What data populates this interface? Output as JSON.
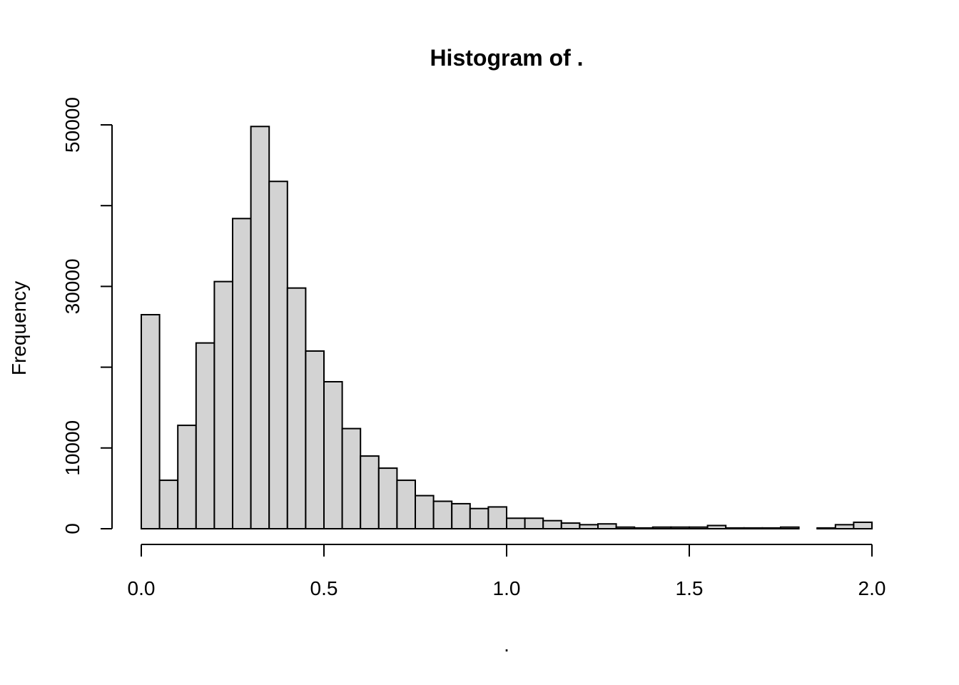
{
  "chart_data": {
    "type": "bar",
    "title": "Histogram of .",
    "xlabel": ".",
    "ylabel": "Frequency",
    "bin_width": 0.05,
    "bin_starts": [
      0.0,
      0.05,
      0.1,
      0.15,
      0.2,
      0.25,
      0.3,
      0.35,
      0.4,
      0.45,
      0.5,
      0.55,
      0.6,
      0.65,
      0.7,
      0.75,
      0.8,
      0.85,
      0.9,
      0.95,
      1.0,
      1.05,
      1.1,
      1.15,
      1.2,
      1.25,
      1.3,
      1.35,
      1.4,
      1.45,
      1.5,
      1.55,
      1.6,
      1.65,
      1.7,
      1.75,
      1.8,
      1.85,
      1.9,
      1.95
    ],
    "values": [
      26500,
      6000,
      12800,
      23000,
      30600,
      38400,
      49800,
      43000,
      29800,
      22000,
      18200,
      12400,
      9000,
      7500,
      6000,
      4100,
      3400,
      3100,
      2500,
      2700,
      1300,
      1300,
      1000,
      700,
      500,
      600,
      200,
      100,
      200,
      200,
      200,
      400,
      100,
      100,
      100,
      200,
      0,
      100,
      500,
      800
    ],
    "xlim": [
      0,
      2
    ],
    "ylim": [
      0,
      50000
    ],
    "x_ticks": [
      0.0,
      0.5,
      1.0,
      1.5,
      2.0
    ],
    "x_tick_labels": [
      "0.0",
      "0.5",
      "1.0",
      "1.5",
      "2.0"
    ],
    "y_ticks": [
      0,
      10000,
      20000,
      30000,
      40000,
      50000
    ],
    "y_tick_labels": [
      "0",
      "10000",
      "",
      "30000",
      "",
      "50000"
    ],
    "grid": false,
    "legend": "none",
    "colors": {
      "bar_fill": "#d3d3d3",
      "bar_stroke": "#000000"
    }
  }
}
